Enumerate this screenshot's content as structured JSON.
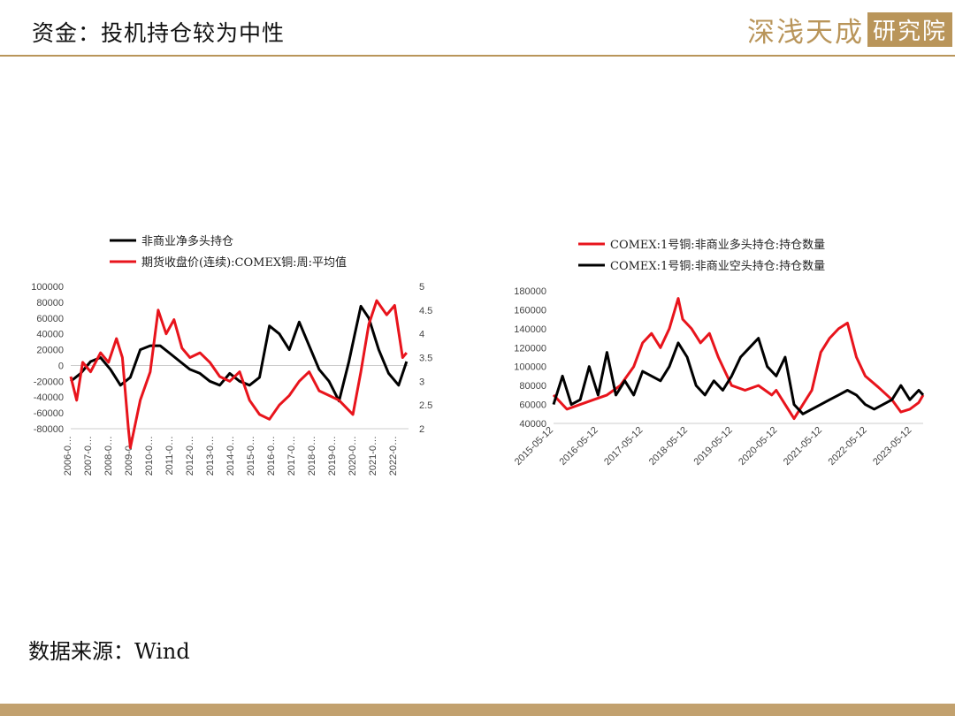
{
  "header": {
    "title": "资金：投机持仓较为中性"
  },
  "logo": {
    "text": "深浅天成",
    "box_text": "研究院"
  },
  "footer": {
    "source": "数据来源：Wind"
  },
  "colors": {
    "gold": "#b9955a",
    "black": "#000000",
    "red": "#e8141c"
  },
  "chart_data": [
    {
      "type": "line",
      "title": "",
      "legend_position": "top",
      "x_ticks": [
        "2006-0…",
        "2007-0…",
        "2008-0…",
        "2009-0…",
        "2010-0…",
        "2011-0…",
        "2012-0…",
        "2013-0…",
        "2014-0…",
        "2015-0…",
        "2016-0…",
        "2017-0…",
        "2018-0…",
        "2019-0…",
        "2020-0…",
        "2021-0…",
        "2022-0…"
      ],
      "xlim": [
        2006.0,
        2023.0
      ],
      "y_left": {
        "lim": [
          -80000,
          100000
        ],
        "ticks": [
          "100000",
          "80000",
          "60000",
          "40000",
          "20000",
          "0",
          "-20000",
          "-40000",
          "-60000",
          "-80000"
        ]
      },
      "y_right": {
        "lim": [
          2,
          5
        ],
        "ticks": [
          "5",
          "4.5",
          "4",
          "3.5",
          "3",
          "2.5",
          "2"
        ]
      },
      "series": [
        {
          "name": "非商业净多头持仓",
          "color": "#000000",
          "axis": "left",
          "x": [
            2006.0,
            2006.5,
            2007.0,
            2007.5,
            2008.0,
            2008.5,
            2009.0,
            2009.5,
            2010.0,
            2010.5,
            2011.0,
            2011.5,
            2012.0,
            2012.5,
            2013.0,
            2013.5,
            2014.0,
            2014.5,
            2015.0,
            2015.5,
            2016.0,
            2016.5,
            2017.0,
            2017.5,
            2018.0,
            2018.5,
            2019.0,
            2019.5,
            2020.0,
            2020.3,
            2020.6,
            2021.0,
            2021.5,
            2022.0,
            2022.5,
            2022.9
          ],
          "values": [
            -20000,
            -10000,
            5000,
            10000,
            -5000,
            -25000,
            -15000,
            20000,
            25000,
            25000,
            15000,
            5000,
            -5000,
            -10000,
            -20000,
            -25000,
            -10000,
            -20000,
            -25000,
            -15000,
            50000,
            40000,
            20000,
            55000,
            25000,
            -5000,
            -20000,
            -45000,
            5000,
            40000,
            75000,
            60000,
            20000,
            -10000,
            -25000,
            5000
          ]
        },
        {
          "name": "期货收盘价(连续):COMEX铜:周:平均值",
          "color": "#e8141c",
          "axis": "right",
          "x": [
            2006.0,
            2006.3,
            2006.6,
            2007.0,
            2007.5,
            2007.9,
            2008.3,
            2008.6,
            2008.9,
            2009.0,
            2009.5,
            2010.0,
            2010.4,
            2010.8,
            2011.2,
            2011.6,
            2012.0,
            2012.5,
            2013.0,
            2013.5,
            2014.0,
            2014.5,
            2015.0,
            2015.5,
            2016.0,
            2016.5,
            2017.0,
            2017.5,
            2018.0,
            2018.5,
            2019.0,
            2019.5,
            2020.2,
            2020.6,
            2021.0,
            2021.4,
            2021.9,
            2022.3,
            2022.7,
            2022.9
          ],
          "values": [
            3.1,
            2.6,
            3.4,
            3.2,
            3.6,
            3.4,
            3.9,
            3.5,
            2.0,
            1.6,
            2.6,
            3.2,
            4.5,
            4.0,
            4.3,
            3.7,
            3.5,
            3.6,
            3.4,
            3.1,
            3.0,
            3.2,
            2.6,
            2.3,
            2.2,
            2.5,
            2.7,
            3.0,
            3.2,
            2.8,
            2.7,
            2.6,
            2.3,
            3.2,
            4.2,
            4.7,
            4.4,
            4.6,
            3.5,
            3.6
          ]
        }
      ]
    },
    {
      "type": "line",
      "title": "",
      "legend_position": "top",
      "x_ticks": [
        "2015-05-12",
        "2016-05-12",
        "2017-05-12",
        "2018-05-12",
        "2019-05-12",
        "2020-05-12",
        "2021-05-12",
        "2022-05-12",
        "2023-05-12"
      ],
      "xlim": [
        2015.0,
        2023.3
      ],
      "y_left": {
        "lim": [
          40000,
          180000
        ],
        "ticks": [
          "180000",
          "160000",
          "140000",
          "120000",
          "100000",
          "80000",
          "60000",
          "40000"
        ]
      },
      "series": [
        {
          "name": "COMEX:1号铜:非商业多头持仓:持仓数量",
          "color": "#e8141c",
          "x": [
            2015.0,
            2015.3,
            2015.6,
            2015.9,
            2016.2,
            2016.5,
            2016.8,
            2017.0,
            2017.2,
            2017.4,
            2017.6,
            2017.8,
            2017.9,
            2018.1,
            2018.3,
            2018.5,
            2018.7,
            2019.0,
            2019.3,
            2019.6,
            2019.9,
            2020.0,
            2020.2,
            2020.4,
            2020.6,
            2020.8,
            2021.0,
            2021.2,
            2021.4,
            2021.6,
            2021.8,
            2022.0,
            2022.3,
            2022.6,
            2022.8,
            2023.0,
            2023.2,
            2023.3
          ],
          "values": [
            70000,
            55000,
            60000,
            65000,
            70000,
            80000,
            100000,
            125000,
            135000,
            120000,
            140000,
            172000,
            150000,
            140000,
            125000,
            135000,
            110000,
            80000,
            75000,
            80000,
            70000,
            75000,
            60000,
            45000,
            60000,
            75000,
            115000,
            130000,
            140000,
            146000,
            110000,
            90000,
            78000,
            65000,
            52000,
            55000,
            62000,
            70000
          ]
        },
        {
          "name": "COMEX:1号铜:非商业空头持仓:持仓数量",
          "color": "#000000",
          "x": [
            2015.0,
            2015.2,
            2015.4,
            2015.6,
            2015.8,
            2016.0,
            2016.2,
            2016.4,
            2016.6,
            2016.8,
            2017.0,
            2017.2,
            2017.4,
            2017.6,
            2017.8,
            2018.0,
            2018.2,
            2018.4,
            2018.6,
            2018.8,
            2019.0,
            2019.2,
            2019.4,
            2019.6,
            2019.8,
            2020.0,
            2020.2,
            2020.4,
            2020.6,
            2020.8,
            2021.0,
            2021.2,
            2021.4,
            2021.6,
            2021.8,
            2022.0,
            2022.2,
            2022.4,
            2022.6,
            2022.8,
            2023.0,
            2023.2,
            2023.3
          ],
          "values": [
            60000,
            90000,
            60000,
            65000,
            100000,
            70000,
            115000,
            70000,
            85000,
            70000,
            95000,
            90000,
            85000,
            100000,
            125000,
            110000,
            80000,
            70000,
            85000,
            75000,
            90000,
            110000,
            120000,
            130000,
            100000,
            90000,
            110000,
            60000,
            50000,
            55000,
            60000,
            65000,
            70000,
            75000,
            70000,
            60000,
            55000,
            60000,
            65000,
            80000,
            65000,
            75000,
            70000
          ]
        }
      ]
    }
  ]
}
